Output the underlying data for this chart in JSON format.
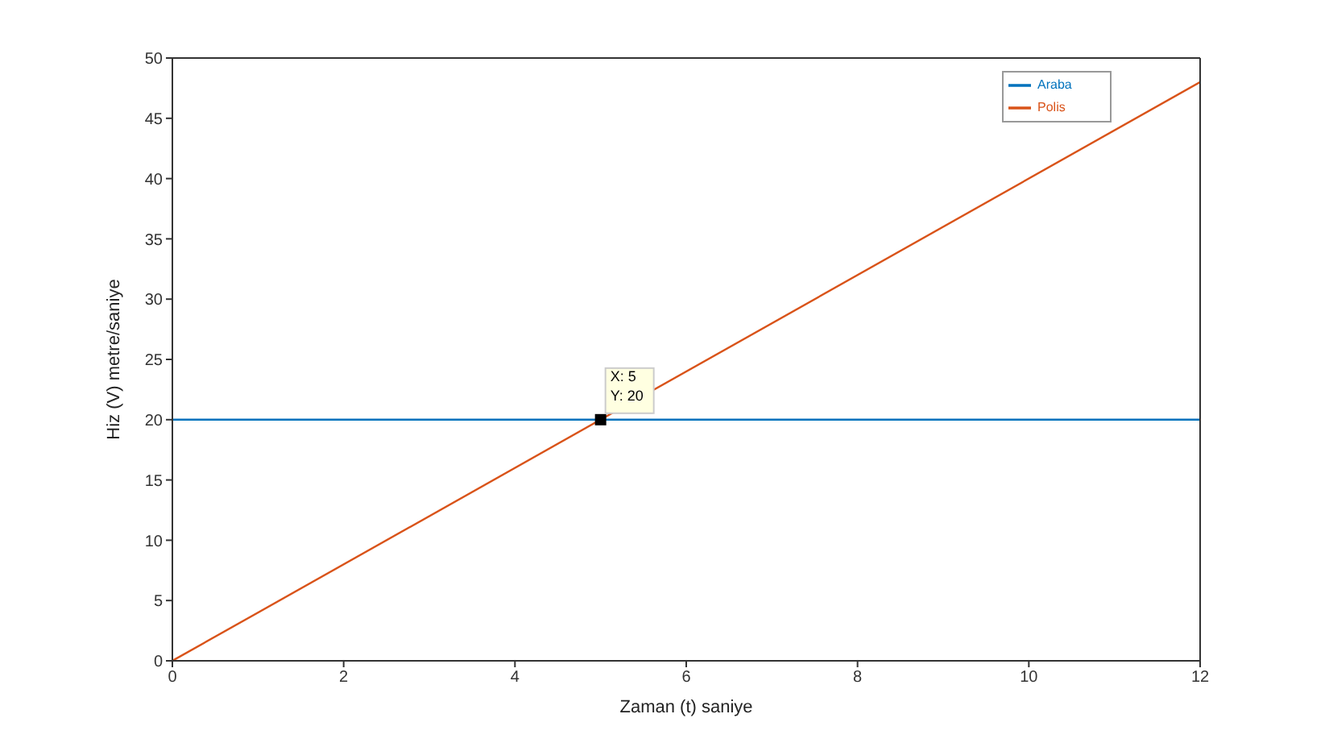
{
  "chart_data": {
    "type": "line",
    "xlabel": "Zaman (t) saniye",
    "ylabel": "Hiz (V) metre/saniye",
    "xlim": [
      0,
      12
    ],
    "xticks": [
      0,
      2,
      4,
      6,
      8,
      10,
      12
    ],
    "ylim": [
      0,
      50
    ],
    "yticks": [
      0,
      5,
      10,
      15,
      20,
      25,
      30,
      35,
      40,
      45,
      50
    ],
    "grid": false,
    "legend": "top right",
    "marker": "none",
    "line_style": "solid",
    "x": [
      0,
      12
    ],
    "series": [
      {
        "name": "Araba",
        "color": "#0072bd",
        "values": [
          20,
          20
        ]
      },
      {
        "name": "Polis",
        "color": "#d95319",
        "values": [
          0,
          48
        ]
      }
    ],
    "annotations": [
      {
        "text": "X: 5\nY: 20",
        "x": 5,
        "y": 20
      }
    ]
  }
}
